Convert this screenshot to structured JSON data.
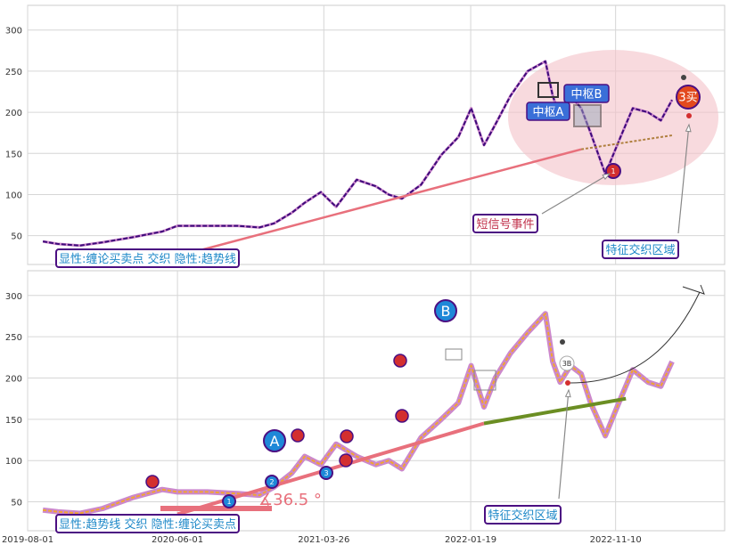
{
  "colors": {
    "price_top": "#3d0a7a",
    "price_bottom": "#f0a530",
    "trend_line": "#e8707c",
    "trend_ext": "#6b8e23",
    "trend_ext_top": "#b08040",
    "stroke_overlay": "#cc88cc",
    "box_fill": "#3a6fd8",
    "ellipse": "#f3c2c8",
    "callout_border": "#4b0f82",
    "callout_text_blue": "#1e88c8",
    "callout_text_red": "#c0304a",
    "marker_red": "#d32f2f",
    "marker_blue": "#1e88d8",
    "grid": "#d6d6d6"
  },
  "chart_data": [
    {
      "type": "line",
      "panel": "top",
      "ylim": [
        15,
        330
      ],
      "yticks": [
        50,
        100,
        150,
        200,
        250,
        300
      ],
      "grid": true,
      "x": [
        "2019-09-01",
        "2019-10-01",
        "2019-11-15",
        "2020-01-01",
        "2020-03-01",
        "2020-05-01",
        "2020-06-01",
        "2020-08-01",
        "2020-10-01",
        "2020-11-15",
        "2020-12-15",
        "2021-01-20",
        "2021-02-15",
        "2021-03-20",
        "2021-04-20",
        "2021-06-01",
        "2021-07-10",
        "2021-08-05",
        "2021-09-01",
        "2021-10-10",
        "2021-11-20",
        "2021-12-25",
        "2022-01-20",
        "2022-02-15",
        "2022-03-10",
        "2022-04-10",
        "2022-05-15",
        "2022-06-20",
        "2022-07-05",
        "2022-07-20",
        "2022-08-10",
        "2022-09-01",
        "2022-09-20",
        "2022-10-20",
        "2022-11-20",
        "2022-12-15",
        "2023-01-15",
        "2023-02-10",
        "2023-03-05"
      ],
      "series": [
        {
          "values": [
            43,
            40,
            38,
            42,
            48,
            55,
            62,
            62,
            62,
            60,
            65,
            78,
            90,
            103,
            85,
            118,
            110,
            100,
            95,
            112,
            148,
            170,
            205,
            160,
            185,
            220,
            250,
            262,
            220,
            195,
            220,
            205,
            175,
            125,
            170,
            205,
            200,
            190,
            215
          ]
        }
      ],
      "trendline": {
        "from": [
          "2020-06-01",
          25
        ],
        "to": [
          "2023-03-05",
          172
        ]
      },
      "tick_labels": [
        "50",
        "100",
        "150",
        "200",
        "250",
        "300"
      ],
      "annotations": {
        "zs_a": "中枢A",
        "zs_b": "中枢B",
        "buy3": "3买",
        "buy1": "1",
        "short_event": "短信号事件",
        "feature_zone": "特征交织区域",
        "legend_top": "显性:缠论买卖点 交织 隐性:趋势线"
      }
    },
    {
      "type": "line",
      "panel": "bottom",
      "ylim": [
        15,
        330
      ],
      "yticks": [
        50,
        100,
        150,
        200,
        250,
        300
      ],
      "grid": true,
      "x": [
        "2019-09-01",
        "2019-10-01",
        "2019-11-15",
        "2020-01-01",
        "2020-03-01",
        "2020-05-01",
        "2020-06-01",
        "2020-08-01",
        "2020-10-01",
        "2020-11-15",
        "2020-12-15",
        "2021-01-20",
        "2021-02-15",
        "2021-03-20",
        "2021-04-20",
        "2021-06-01",
        "2021-07-10",
        "2021-08-05",
        "2021-09-01",
        "2021-10-10",
        "2021-11-20",
        "2021-12-25",
        "2022-01-20",
        "2022-02-15",
        "2022-03-10",
        "2022-04-10",
        "2022-05-15",
        "2022-06-20",
        "2022-07-05",
        "2022-07-20",
        "2022-08-10",
        "2022-09-01",
        "2022-09-20",
        "2022-10-20",
        "2022-11-20",
        "2022-12-15",
        "2023-01-15",
        "2023-02-10",
        "2023-03-05"
      ],
      "x_tick_labels": [
        "2019-08-01",
        "2020-06-01",
        "2021-03-26",
        "2022-01-19",
        "2022-11-10"
      ],
      "series": [
        {
          "values": [
            40,
            38,
            36,
            42,
            55,
            65,
            62,
            62,
            60,
            58,
            68,
            85,
            105,
            95,
            120,
            105,
            95,
            100,
            90,
            128,
            150,
            170,
            215,
            165,
            200,
            230,
            255,
            278,
            220,
            195,
            215,
            205,
            170,
            130,
            175,
            210,
            195,
            190,
            220
          ]
        }
      ],
      "trendline": {
        "from": [
          "2020-06-01",
          35
        ],
        "to": [
          "2022-02-15",
          145
        ]
      },
      "trendline_ext": {
        "from": [
          "2022-02-15",
          145
        ],
        "to": [
          "2022-12-01",
          175
        ]
      },
      "angle_label": "∡36.5 °",
      "tick_labels": [
        "50",
        "100",
        "150",
        "200",
        "250",
        "300"
      ],
      "annotations": {
        "wave_a": "A",
        "wave_b": "B",
        "n1": "1",
        "n2": "2",
        "n3": "3",
        "n3b": "3B",
        "feature_zone": "特征交织区域",
        "legend_bottom": "显性:趋势线 交织 隐性:缠论买卖点"
      }
    }
  ]
}
